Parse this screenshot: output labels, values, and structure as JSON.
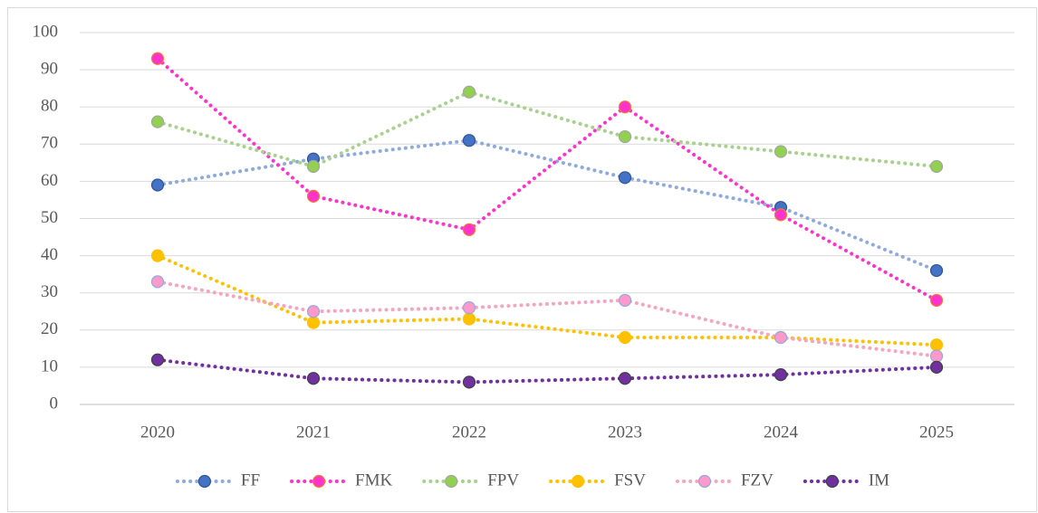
{
  "chart_data": {
    "type": "line",
    "categories": [
      "2020",
      "2021",
      "2022",
      "2023",
      "2024",
      "2025"
    ],
    "series": [
      {
        "name": "FF",
        "color": "#4472c4",
        "line_color": "#8faadc",
        "edge_color": "#2f5597",
        "values": [
          59,
          66,
          71,
          61,
          53,
          36
        ]
      },
      {
        "name": "FMK",
        "color": "#ff33cc",
        "line_color": "#ff33cc",
        "edge_color": "#ed7d31",
        "values": [
          93,
          56,
          47,
          80,
          51,
          28
        ]
      },
      {
        "name": "FPV",
        "color": "#92d050",
        "line_color": "#a9d18e",
        "edge_color": "#a5a5a5",
        "values": [
          76,
          64,
          84,
          72,
          68,
          64
        ]
      },
      {
        "name": "FSV",
        "color": "#ffc000",
        "line_color": "#ffc000",
        "edge_color": "#ffc000",
        "values": [
          40,
          22,
          23,
          18,
          18,
          16
        ]
      },
      {
        "name": "FZV",
        "color": "#ff99cc",
        "line_color": "#f4a6c0",
        "edge_color": "#8faadc",
        "values": [
          33,
          25,
          26,
          28,
          18,
          13
        ]
      },
      {
        "name": "IM",
        "color": "#7030a0",
        "line_color": "#7030a0",
        "edge_color": "#404040",
        "values": [
          12,
          7,
          6,
          7,
          8,
          10
        ]
      }
    ],
    "ylim": [
      0,
      100
    ],
    "yticks": [
      0,
      10,
      20,
      30,
      40,
      50,
      60,
      70,
      80,
      90,
      100
    ],
    "grid": true,
    "legend": "bottom"
  }
}
